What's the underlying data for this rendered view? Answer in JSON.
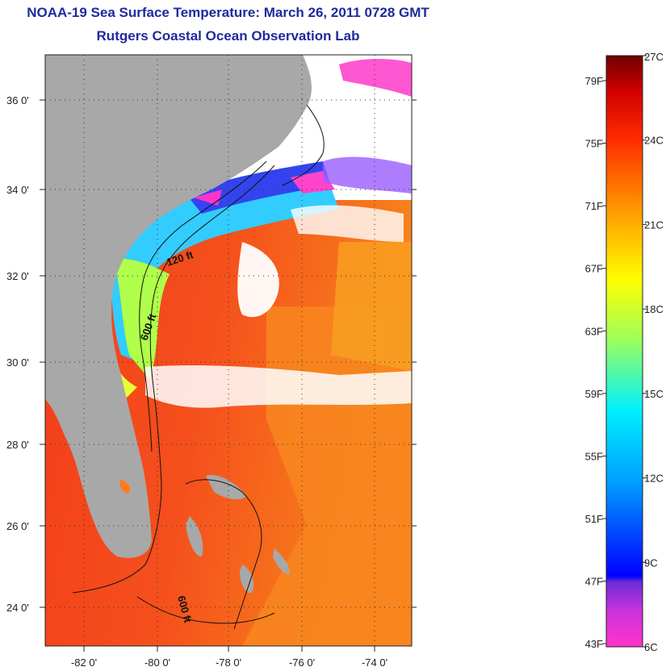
{
  "title": {
    "line1": "NOAA-19 Sea Surface Temperature:  March 26, 2011 0728 GMT",
    "line2": "Rutgers Coastal Ocean Observation Lab"
  },
  "map": {
    "lon_labels": [
      "-82 0'",
      "-80 0'",
      "-78 0'",
      "-76 0'",
      "-74 0'"
    ],
    "lat_labels": [
      "36 0'",
      "34 0'",
      "32 0'",
      "30 0'",
      "28 0'",
      "26 0'",
      "24 0'"
    ],
    "contour_labels": [
      "120 ft",
      "600 ft",
      "600 ft"
    ],
    "colors": {
      "land": "#a8a8a8",
      "cloud": "#ffffff",
      "warm_water": "#f2351a",
      "mid_water": "#f7821c"
    }
  },
  "colorbar": {
    "fahrenheit_labels": [
      "79F",
      "75F",
      "71F",
      "67F",
      "63F",
      "59F",
      "55F",
      "51F",
      "47F",
      "43F"
    ],
    "celsius_labels": [
      "27C",
      "24C",
      "21C",
      "18C",
      "15C",
      "12C",
      "9C",
      "6C"
    ],
    "range_c": [
      6,
      27
    ],
    "gradient_stops": [
      "#ff33cc",
      "#6a2bd6",
      "#0000ff",
      "#00a0ff",
      "#00f0ff",
      "#b8ff40",
      "#ffff00",
      "#ff9800",
      "#ff2a00",
      "#d10000",
      "#6e0000"
    ]
  }
}
